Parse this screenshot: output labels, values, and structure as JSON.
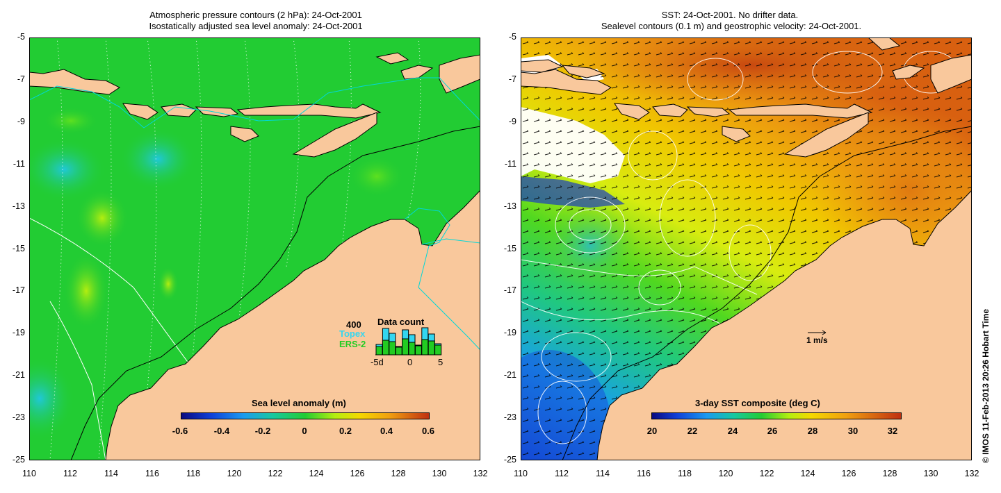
{
  "left_panel": {
    "title_line1": "Atmospheric pressure contours (2 hPa): 24-Oct-2001",
    "title_line2": "Isostatically adjusted sea level anomaly: 24-Oct-2001",
    "colorbar_label": "Sea level anomaly (m)",
    "colorbar_ticks": [
      "-0.6",
      "-0.4",
      "-0.2",
      "0",
      "0.2",
      "0.4",
      "0.6"
    ],
    "data_count": {
      "title": "Data count",
      "max_label": "400",
      "topex_label": "Topex",
      "ers_label": "ERS-2",
      "x_ticks": [
        "-5d",
        "0",
        "5"
      ],
      "topex_color": "#33d6f0",
      "ers_color": "#22cc22",
      "day_counts": [
        {
          "day": -5,
          "topex": 150,
          "ers": 120
        },
        {
          "day": -4,
          "topex": 380,
          "ers": 210
        },
        {
          "day": -3,
          "topex": 310,
          "ers": 190
        },
        {
          "day": -2,
          "topex": 120,
          "ers": 110
        },
        {
          "day": -1,
          "topex": 360,
          "ers": 230
        },
        {
          "day": 0,
          "topex": 290,
          "ers": 180
        },
        {
          "day": 1,
          "topex": 140,
          "ers": 130
        },
        {
          "day": 2,
          "topex": 390,
          "ers": 220
        },
        {
          "day": 3,
          "topex": 300,
          "ers": 200
        },
        {
          "day": 4,
          "topex": 160,
          "ers": 140
        }
      ]
    }
  },
  "right_panel": {
    "title_line1": "SST: 24-Oct-2001. No drifter data.",
    "title_line2": "Sealevel contours (0.1 m) and geostrophic velocity: 24-Oct-2001.",
    "colorbar_label": "3-day SST composite (deg C)",
    "colorbar_ticks": [
      "20",
      "22",
      "24",
      "26",
      "28",
      "30",
      "32"
    ],
    "velocity_scale_label": "1 m/s"
  },
  "axes": {
    "y_ticks": [
      "-5",
      "-7",
      "-9",
      "-11",
      "-13",
      "-15",
      "-17",
      "-19",
      "-21",
      "-23",
      "-25"
    ],
    "x_ticks": [
      "110",
      "112",
      "114",
      "116",
      "118",
      "120",
      "122",
      "124",
      "126",
      "128",
      "130",
      "132"
    ]
  },
  "credit": "© IMOS 11-Feb-2013 20:26 Hobart Time",
  "colors": {
    "land": "#f9c89c",
    "sla_background": "#22cc33",
    "coast_line": "#000000",
    "pressure_contour": "#ffffff",
    "bathymetry_200m": "#00d8d8"
  }
}
